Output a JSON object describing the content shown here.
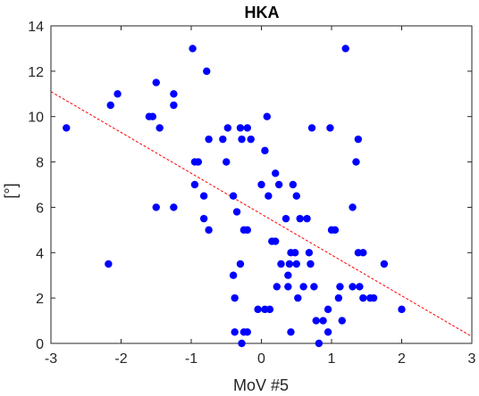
{
  "chart_data": {
    "type": "scatter",
    "title": "HKA",
    "xlabel": "MoV #5",
    "ylabel": "[°]",
    "xlim": [
      -3,
      3
    ],
    "ylim": [
      0,
      14
    ],
    "xticks": [
      -3,
      -2,
      -1,
      0,
      1,
      2,
      3
    ],
    "yticks": [
      0,
      2,
      4,
      6,
      8,
      10,
      12,
      14
    ],
    "xtick_labels": [
      "-3",
      "-2",
      "-1",
      "0",
      "1",
      "2",
      "3"
    ],
    "ytick_labels": [
      "0",
      "2",
      "4",
      "6",
      "8",
      "10",
      "12",
      "14"
    ],
    "grid": false,
    "box": true,
    "series": [
      {
        "marker": "filled-circle",
        "color": "#0000ff",
        "points": [
          [
            -2.78,
            9.5
          ],
          [
            -2.15,
            10.5
          ],
          [
            -2.05,
            11.0
          ],
          [
            -2.18,
            3.5
          ],
          [
            -1.6,
            10.0
          ],
          [
            -1.55,
            10.0
          ],
          [
            -1.5,
            11.5
          ],
          [
            -1.45,
            9.5
          ],
          [
            -1.5,
            6.0
          ],
          [
            -1.25,
            11.0
          ],
          [
            -1.25,
            10.5
          ],
          [
            -1.25,
            6.0
          ],
          [
            -0.98,
            13.0
          ],
          [
            -0.78,
            12.0
          ],
          [
            -0.75,
            9.0
          ],
          [
            -0.95,
            8.0
          ],
          [
            -0.9,
            8.0
          ],
          [
            -0.95,
            7.0
          ],
          [
            -0.82,
            6.5
          ],
          [
            -0.82,
            5.5
          ],
          [
            -0.75,
            5.0
          ],
          [
            -0.55,
            9.0
          ],
          [
            -0.48,
            9.5
          ],
          [
            -0.3,
            9.5
          ],
          [
            -0.2,
            9.5
          ],
          [
            -0.28,
            9.0
          ],
          [
            -0.15,
            9.0
          ],
          [
            -0.5,
            8.0
          ],
          [
            -0.4,
            6.5
          ],
          [
            -0.35,
            5.8
          ],
          [
            -0.25,
            5.0
          ],
          [
            -0.2,
            5.0
          ],
          [
            -0.4,
            3.0
          ],
          [
            -0.3,
            3.5
          ],
          [
            -0.38,
            2.0
          ],
          [
            -0.38,
            0.5
          ],
          [
            -0.25,
            0.5
          ],
          [
            -0.28,
            0.0
          ],
          [
            -0.2,
            0.5
          ],
          [
            0.0,
            7.0
          ],
          [
            0.05,
            8.5
          ],
          [
            0.08,
            10.0
          ],
          [
            0.1,
            6.5
          ],
          [
            0.15,
            4.5
          ],
          [
            0.2,
            4.5
          ],
          [
            0.2,
            7.5
          ],
          [
            0.25,
            7.0
          ],
          [
            0.22,
            2.5
          ],
          [
            0.28,
            3.5
          ],
          [
            0.35,
            5.5
          ],
          [
            0.42,
            4.0
          ],
          [
            0.45,
            7.0
          ],
          [
            0.5,
            6.5
          ],
          [
            0.38,
            3.0
          ],
          [
            0.38,
            2.5
          ],
          [
            0.42,
            0.5
          ],
          [
            0.52,
            2.0
          ],
          [
            0.55,
            5.5
          ],
          [
            0.6,
            2.5
          ],
          [
            0.65,
            5.5
          ],
          [
            0.68,
            4.0
          ],
          [
            0.7,
            3.5
          ],
          [
            0.5,
            3.5
          ],
          [
            0.4,
            3.5
          ],
          [
            0.48,
            4.0
          ],
          [
            -0.05,
            1.5
          ],
          [
            0.05,
            1.5
          ],
          [
            0.12,
            1.5
          ],
          [
            0.72,
            9.5
          ],
          [
            0.75,
            2.5
          ],
          [
            0.78,
            1.0
          ],
          [
            0.82,
            0.0
          ],
          [
            0.88,
            1.0
          ],
          [
            0.95,
            1.5
          ],
          [
            0.98,
            9.5
          ],
          [
            0.95,
            0.5
          ],
          [
            1.0,
            5.0
          ],
          [
            1.05,
            5.0
          ],
          [
            1.1,
            2.0
          ],
          [
            1.12,
            2.5
          ],
          [
            1.15,
            1.0
          ],
          [
            1.2,
            13.0
          ],
          [
            1.3,
            6.0
          ],
          [
            1.3,
            2.5
          ],
          [
            1.35,
            8.0
          ],
          [
            1.38,
            9.0
          ],
          [
            1.38,
            4.0
          ],
          [
            1.4,
            2.5
          ],
          [
            1.45,
            4.0
          ],
          [
            1.45,
            2.0
          ],
          [
            1.55,
            2.0
          ],
          [
            1.6,
            2.0
          ],
          [
            1.75,
            3.5
          ],
          [
            2.0,
            1.5
          ]
        ]
      }
    ],
    "regression_line": {
      "style": "dashed",
      "color": "#ff0000",
      "points": [
        [
          -3,
          11.1
        ],
        [
          3,
          0.3
        ]
      ]
    }
  }
}
